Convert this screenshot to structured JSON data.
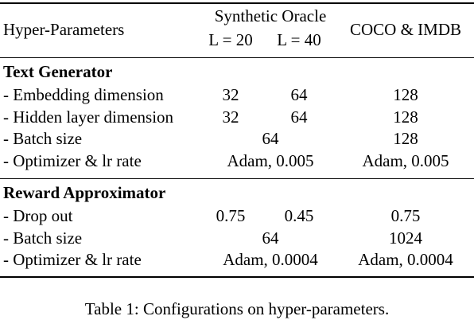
{
  "header": {
    "hyper_label": "Hyper-Parameters",
    "synthetic_oracle": "Synthetic Oracle",
    "l20": "L = 20",
    "l40": "L = 40",
    "coco_imdb": "COCO & IMDB"
  },
  "sections": [
    {
      "title": "Text Generator",
      "rows": [
        {
          "label": "- Embedding dimension",
          "l20": "32",
          "l40": "64",
          "coco": "128"
        },
        {
          "label": "- Hidden layer dimension",
          "l20": "32",
          "l40": "64",
          "coco": "128"
        },
        {
          "label": "- Batch size",
          "synthetic": "64",
          "coco": "128"
        },
        {
          "label": "- Optimizer & lr rate",
          "synthetic": "Adam, 0.005",
          "coco": "Adam, 0.005"
        }
      ]
    },
    {
      "title": "Reward Approximator",
      "rows": [
        {
          "label": "- Drop out",
          "l20": "0.75",
          "l40": "0.45",
          "coco": "0.75"
        },
        {
          "label": "- Batch size",
          "synthetic": "64",
          "coco": "1024"
        },
        {
          "label": "- Optimizer & lr rate",
          "synthetic": "Adam, 0.0004",
          "coco": "Adam, 0.0004"
        }
      ]
    }
  ],
  "caption": "Table 1: Configurations on hyper-parameters."
}
